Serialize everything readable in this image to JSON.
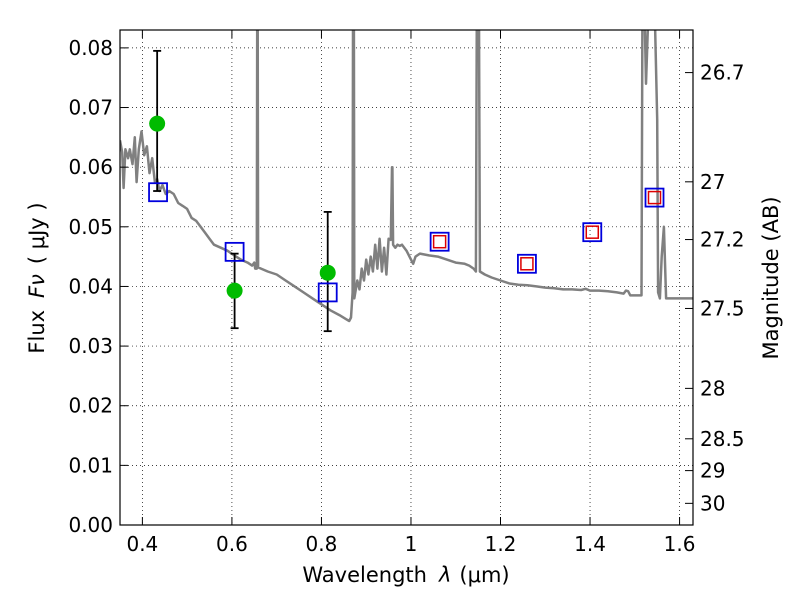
{
  "chart_data": {
    "type": "scatter",
    "xlabel_prefix": "Wavelength",
    "xlabel_symbol": "λ",
    "xlabel_unit": "(μm)",
    "ylabel_prefix": "Flux",
    "ylabel_symbol": "Fν",
    "ylabel_unit": "( μJy )",
    "y2label": "Magnitude (AB)",
    "xlim": [
      0.35,
      1.63
    ],
    "ylim": [
      0.0,
      0.083
    ],
    "grid": true,
    "x_ticks": [
      {
        "value": 0.4,
        "label": "0.4"
      },
      {
        "value": 0.6,
        "label": "0.6"
      },
      {
        "value": 0.8,
        "label": "0.8"
      },
      {
        "value": 1.0,
        "label": "1"
      },
      {
        "value": 1.2,
        "label": "1.2"
      },
      {
        "value": 1.4,
        "label": "1.4"
      },
      {
        "value": 1.6,
        "label": "1.6"
      }
    ],
    "y_ticks": [
      {
        "value": 0.0,
        "label": "0.00"
      },
      {
        "value": 0.01,
        "label": "0.01"
      },
      {
        "value": 0.02,
        "label": "0.02"
      },
      {
        "value": 0.03,
        "label": "0.03"
      },
      {
        "value": 0.04,
        "label": "0.04"
      },
      {
        "value": 0.05,
        "label": "0.05"
      },
      {
        "value": 0.06,
        "label": "0.06"
      },
      {
        "value": 0.07,
        "label": "0.07"
      },
      {
        "value": 0.08,
        "label": "0.08"
      }
    ],
    "mag_ticks": [
      {
        "mag": 26.7,
        "label": "26.7"
      },
      {
        "mag": 27.0,
        "label": "27"
      },
      {
        "mag": 27.2,
        "label": "27.2"
      },
      {
        "mag": 27.5,
        "label": "27.5"
      },
      {
        "mag": 28.0,
        "label": "28"
      },
      {
        "mag": 28.5,
        "label": "28.5"
      },
      {
        "mag": 29.0,
        "label": "29"
      },
      {
        "mag": 30.0,
        "label": "30"
      }
    ],
    "colors": {
      "template": "#808080",
      "observed": "#00bb00",
      "model_box": "#0000dd",
      "model_inner": "#dd0000",
      "errorbar": "#000000"
    },
    "series": [
      {
        "kind": "template_spectrum",
        "points": [
          [
            0.35,
            0.0645
          ],
          [
            0.355,
            0.0625
          ],
          [
            0.358,
            0.0565
          ],
          [
            0.362,
            0.063
          ],
          [
            0.368,
            0.0615
          ],
          [
            0.372,
            0.063
          ],
          [
            0.378,
            0.0605
          ],
          [
            0.383,
            0.065
          ],
          [
            0.387,
            0.0575
          ],
          [
            0.392,
            0.063
          ],
          [
            0.398,
            0.066
          ],
          [
            0.404,
            0.062
          ],
          [
            0.41,
            0.0635
          ],
          [
            0.416,
            0.059
          ],
          [
            0.422,
            0.0615
          ],
          [
            0.428,
            0.0575
          ],
          [
            0.433,
            0.058
          ],
          [
            0.438,
            0.056
          ],
          [
            0.445,
            0.057
          ],
          [
            0.452,
            0.0555
          ],
          [
            0.46,
            0.056
          ],
          [
            0.47,
            0.0555
          ],
          [
            0.48,
            0.054
          ],
          [
            0.49,
            0.0535
          ],
          [
            0.5,
            0.053
          ],
          [
            0.51,
            0.0515
          ],
          [
            0.52,
            0.051
          ],
          [
            0.53,
            0.05
          ],
          [
            0.54,
            0.049
          ],
          [
            0.55,
            0.048
          ],
          [
            0.56,
            0.047
          ],
          [
            0.575,
            0.0465
          ],
          [
            0.59,
            0.046
          ],
          [
            0.605,
            0.0452
          ],
          [
            0.62,
            0.0445
          ],
          [
            0.635,
            0.044
          ],
          [
            0.645,
            0.0435
          ],
          [
            0.65,
            0.044
          ],
          [
            0.652,
            0.043
          ],
          [
            0.6555,
            0.043
          ],
          [
            0.6565,
            0.085
          ],
          [
            0.6575,
            0.085
          ],
          [
            0.6585,
            0.0432
          ],
          [
            0.68,
            0.0425
          ],
          [
            0.7,
            0.042
          ],
          [
            0.72,
            0.041
          ],
          [
            0.74,
            0.04
          ],
          [
            0.76,
            0.039
          ],
          [
            0.78,
            0.038
          ],
          [
            0.8,
            0.037
          ],
          [
            0.82,
            0.036
          ],
          [
            0.84,
            0.0352
          ],
          [
            0.855,
            0.0345
          ],
          [
            0.862,
            0.0342
          ],
          [
            0.866,
            0.0348
          ],
          [
            0.8695,
            0.039
          ],
          [
            0.8705,
            0.085
          ],
          [
            0.8725,
            0.085
          ],
          [
            0.8735,
            0.038
          ],
          [
            0.88,
            0.041
          ],
          [
            0.885,
            0.0395
          ],
          [
            0.89,
            0.043
          ],
          [
            0.895,
            0.041
          ],
          [
            0.9,
            0.0445
          ],
          [
            0.905,
            0.042
          ],
          [
            0.91,
            0.045
          ],
          [
            0.915,
            0.0425
          ],
          [
            0.92,
            0.047
          ],
          [
            0.925,
            0.043
          ],
          [
            0.93,
            0.048
          ],
          [
            0.935,
            0.0425
          ],
          [
            0.94,
            0.0465
          ],
          [
            0.945,
            0.042
          ],
          [
            0.95,
            0.048
          ],
          [
            0.955,
            0.0478
          ],
          [
            0.9575,
            0.06
          ],
          [
            0.9585,
            0.06
          ],
          [
            0.96,
            0.047
          ],
          [
            0.965,
            0.0465
          ],
          [
            0.97,
            0.047
          ],
          [
            0.975,
            0.0468
          ],
          [
            0.98,
            0.047
          ],
          [
            0.99,
            0.046
          ],
          [
            1.0,
            0.0445
          ],
          [
            1.005,
            0.0438
          ],
          [
            1.01,
            0.045
          ],
          [
            1.02,
            0.0455
          ],
          [
            1.04,
            0.0452
          ],
          [
            1.06,
            0.045
          ],
          [
            1.08,
            0.0445
          ],
          [
            1.1,
            0.044
          ],
          [
            1.12,
            0.0438
          ],
          [
            1.13,
            0.0435
          ],
          [
            1.14,
            0.043
          ],
          [
            1.145,
            0.0425
          ],
          [
            1.147,
            0.085
          ],
          [
            1.152,
            0.085
          ],
          [
            1.154,
            0.0425
          ],
          [
            1.165,
            0.042
          ],
          [
            1.18,
            0.0415
          ],
          [
            1.2,
            0.041
          ],
          [
            1.22,
            0.0405
          ],
          [
            1.24,
            0.0403
          ],
          [
            1.26,
            0.0402
          ],
          [
            1.28,
            0.04
          ],
          [
            1.3,
            0.0398
          ],
          [
            1.32,
            0.0397
          ],
          [
            1.34,
            0.0395
          ],
          [
            1.36,
            0.0395
          ],
          [
            1.38,
            0.0394
          ],
          [
            1.39,
            0.0396
          ],
          [
            1.4,
            0.0393
          ],
          [
            1.42,
            0.0393
          ],
          [
            1.44,
            0.0392
          ],
          [
            1.46,
            0.039
          ],
          [
            1.475,
            0.0388
          ],
          [
            1.48,
            0.0393
          ],
          [
            1.485,
            0.0392
          ],
          [
            1.49,
            0.0385
          ],
          [
            1.5,
            0.0385
          ],
          [
            1.51,
            0.0385
          ],
          [
            1.515,
            0.0385
          ],
          [
            1.517,
            0.085
          ],
          [
            1.522,
            0.085
          ],
          [
            1.525,
            0.074
          ],
          [
            1.53,
            0.085
          ],
          [
            1.535,
            0.085
          ],
          [
            1.54,
            0.085
          ],
          [
            1.545,
            0.085
          ],
          [
            1.55,
            0.068
          ],
          [
            1.552,
            0.039
          ],
          [
            1.556,
            0.038
          ],
          [
            1.56,
            0.045
          ],
          [
            1.565,
            0.05
          ],
          [
            1.57,
            0.038
          ],
          [
            1.58,
            0.038
          ],
          [
            1.6,
            0.038
          ],
          [
            1.62,
            0.038
          ],
          [
            1.63,
            0.038
          ]
        ]
      },
      {
        "kind": "observed",
        "points": [
          {
            "x": 0.433,
            "y": 0.0673,
            "err_low": 0.056,
            "err_high": 0.0795
          },
          {
            "x": 0.606,
            "y": 0.0393,
            "err_low": 0.033,
            "err_high": 0.0455
          },
          {
            "x": 0.814,
            "y": 0.0423,
            "err_low": 0.0325,
            "err_high": 0.0525
          }
        ]
      },
      {
        "kind": "model_photometry",
        "points": [
          {
            "x": 0.435,
            "y": 0.0558
          },
          {
            "x": 0.606,
            "y": 0.0458
          },
          {
            "x": 0.814,
            "y": 0.039
          },
          {
            "x": 1.064,
            "y": 0.0475,
            "inner": true
          },
          {
            "x": 1.259,
            "y": 0.0438,
            "inner": true
          },
          {
            "x": 1.405,
            "y": 0.0491,
            "inner": true
          },
          {
            "x": 1.544,
            "y": 0.0549,
            "inner": true
          }
        ]
      }
    ]
  }
}
